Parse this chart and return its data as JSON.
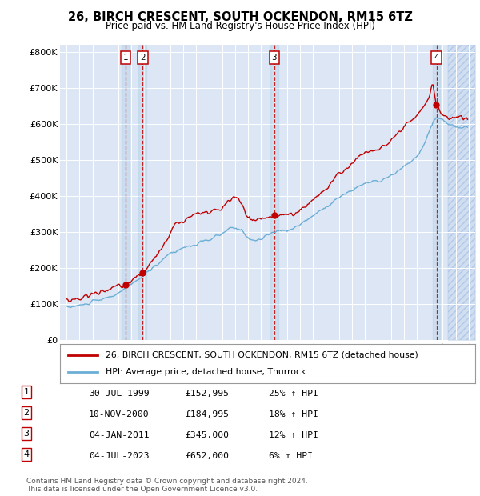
{
  "title": "26, BIRCH CRESCENT, SOUTH OCKENDON, RM15 6TZ",
  "subtitle": "Price paid vs. HM Land Registry's House Price Index (HPI)",
  "background_color": "#ffffff",
  "plot_bg_color": "#dce6f4",
  "hatch_color": "#c8d8ee",
  "grid_color": "#ffffff",
  "hpi_line_color": "#6baed6",
  "price_line_color": "#c00000",
  "legend_label_price": "26, BIRCH CRESCENT, SOUTH OCKENDON, RM15 6TZ (detached house)",
  "legend_label_hpi": "HPI: Average price, detached house, Thurrock",
  "footer_line1": "Contains HM Land Registry data © Crown copyright and database right 2024.",
  "footer_line2": "This data is licensed under the Open Government Licence v3.0.",
  "transactions": [
    {
      "num": 1,
      "date": "30-JUL-1999",
      "price": 152995,
      "price_str": "£152,995",
      "pct": "25%",
      "dir": "↑",
      "label": "HPI",
      "x_year": 1999.57
    },
    {
      "num": 2,
      "date": "10-NOV-2000",
      "price": 184995,
      "price_str": "£184,995",
      "pct": "18%",
      "dir": "↑",
      "label": "HPI",
      "x_year": 2000.87
    },
    {
      "num": 3,
      "date": "04-JAN-2011",
      "price": 345000,
      "price_str": "£345,000",
      "pct": "12%",
      "dir": "↑",
      "label": "HPI",
      "x_year": 2011.01
    },
    {
      "num": 4,
      "date": "04-JUL-2023",
      "price": 652000,
      "price_str": "£652,000",
      "pct": "6%",
      "dir": "↑",
      "label": "HPI",
      "x_year": 2023.51
    }
  ],
  "ylim": [
    0,
    820000
  ],
  "xlim": [
    1994.5,
    2026.5
  ],
  "yticks": [
    0,
    100000,
    200000,
    300000,
    400000,
    500000,
    600000,
    700000,
    800000
  ],
  "ytick_labels": [
    "£0",
    "£100K",
    "£200K",
    "£300K",
    "£400K",
    "£500K",
    "£600K",
    "£700K",
    "£800K"
  ]
}
